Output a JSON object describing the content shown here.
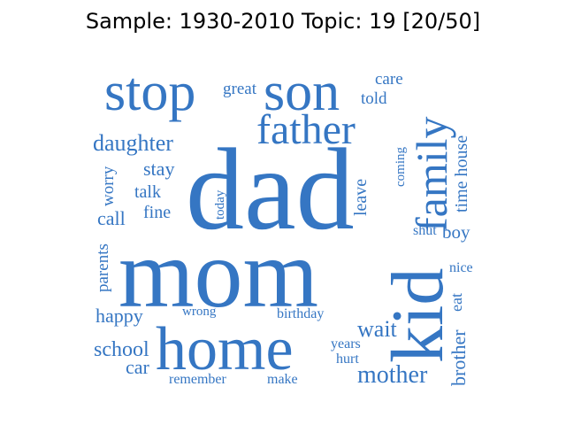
{
  "title": "Sample: 1930-2010 Topic: 19 [20/50]",
  "colors": {
    "word": "#3576c3",
    "background": "#ffffff",
    "title": "#000000"
  },
  "words": [
    {
      "id": "dad",
      "text": "dad"
    },
    {
      "id": "mom",
      "text": "mom"
    },
    {
      "id": "home",
      "text": "home"
    },
    {
      "id": "kid",
      "text": "kid"
    },
    {
      "id": "son",
      "text": "son"
    },
    {
      "id": "stop",
      "text": "stop"
    },
    {
      "id": "family",
      "text": "family"
    },
    {
      "id": "father",
      "text": "father"
    },
    {
      "id": "mother",
      "text": "mother"
    },
    {
      "id": "daughter",
      "text": "daughter"
    },
    {
      "id": "brother",
      "text": "brother"
    },
    {
      "id": "school",
      "text": "school"
    },
    {
      "id": "wait",
      "text": "wait"
    },
    {
      "id": "happy",
      "text": "happy"
    },
    {
      "id": "call",
      "text": "call"
    },
    {
      "id": "stay",
      "text": "stay"
    },
    {
      "id": "car",
      "text": "car"
    },
    {
      "id": "time-house",
      "text": "time house"
    },
    {
      "id": "great",
      "text": "great"
    },
    {
      "id": "care",
      "text": "care"
    },
    {
      "id": "told",
      "text": "told"
    },
    {
      "id": "talk",
      "text": "talk"
    },
    {
      "id": "fine",
      "text": "fine"
    },
    {
      "id": "boy",
      "text": "boy"
    },
    {
      "id": "worry",
      "text": "worry"
    },
    {
      "id": "parents",
      "text": "parents"
    },
    {
      "id": "leave",
      "text": "leave"
    },
    {
      "id": "today",
      "text": "today"
    },
    {
      "id": "coming",
      "text": "coming"
    },
    {
      "id": "shut",
      "text": "shut"
    },
    {
      "id": "nice",
      "text": "nice"
    },
    {
      "id": "eat",
      "text": "eat"
    },
    {
      "id": "wrong",
      "text": "wrong"
    },
    {
      "id": "birthday",
      "text": "birthday"
    },
    {
      "id": "years",
      "text": "years"
    },
    {
      "id": "hurt",
      "text": "hurt"
    },
    {
      "id": "remember",
      "text": "remember"
    },
    {
      "id": "make",
      "text": "make"
    }
  ]
}
